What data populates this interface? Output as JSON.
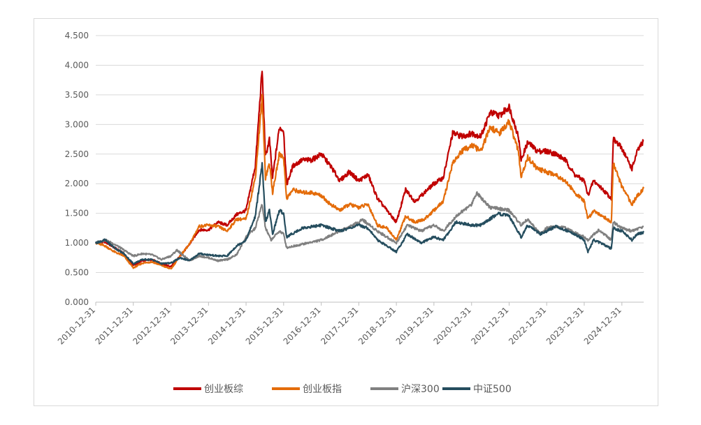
{
  "chart_data": {
    "type": "line",
    "title": "",
    "xlabel": "",
    "ylabel": "",
    "ylim": [
      0,
      4.5
    ],
    "yticks": [
      "0.000",
      "0.500",
      "1.000",
      "1.500",
      "2.000",
      "2.500",
      "3.000",
      "3.500",
      "4.000",
      "4.500"
    ],
    "x_tick_labels": [
      "2010-12-31",
      "2011-12-31",
      "2012-12-31",
      "2013-12-31",
      "2014-12-31",
      "2015-12-31",
      "2016-12-31",
      "2017-12-31",
      "2018-12-31",
      "2019-12-31",
      "2020-12-31",
      "2021-12-31",
      "2022-12-31",
      "2023-12-31",
      "2024-12-31"
    ],
    "xlim": [
      "2010-12-31",
      "2025-07-31"
    ],
    "grid": "horizontal",
    "legend_position": "bottom",
    "series": [
      {
        "name": "创业板综",
        "color": "#C00000",
        "points": [
          [
            "2010-12-31",
            1.0
          ],
          [
            "2011-03-31",
            1.02
          ],
          [
            "2011-06-30",
            0.92
          ],
          [
            "2011-09-30",
            0.82
          ],
          [
            "2011-12-31",
            0.62
          ],
          [
            "2012-03-31",
            0.7
          ],
          [
            "2012-06-30",
            0.72
          ],
          [
            "2012-09-30",
            0.65
          ],
          [
            "2012-12-31",
            0.6
          ],
          [
            "2013-03-31",
            0.78
          ],
          [
            "2013-06-30",
            0.98
          ],
          [
            "2013-09-30",
            1.22
          ],
          [
            "2013-12-31",
            1.22
          ],
          [
            "2014-03-31",
            1.35
          ],
          [
            "2014-06-30",
            1.3
          ],
          [
            "2014-09-30",
            1.48
          ],
          [
            "2014-12-31",
            1.55
          ],
          [
            "2015-03-31",
            2.3
          ],
          [
            "2015-06-05",
            3.92
          ],
          [
            "2015-07-08",
            2.45
          ],
          [
            "2015-08-15",
            2.75
          ],
          [
            "2015-09-15",
            2.1
          ],
          [
            "2015-11-20",
            2.95
          ],
          [
            "2015-12-31",
            2.9
          ],
          [
            "2016-01-29",
            1.98
          ],
          [
            "2016-03-31",
            2.3
          ],
          [
            "2016-06-30",
            2.4
          ],
          [
            "2016-09-30",
            2.4
          ],
          [
            "2016-12-31",
            2.5
          ],
          [
            "2017-03-31",
            2.3
          ],
          [
            "2017-06-30",
            2.05
          ],
          [
            "2017-09-30",
            2.2
          ],
          [
            "2017-12-31",
            2.05
          ],
          [
            "2018-03-31",
            2.15
          ],
          [
            "2018-06-30",
            1.75
          ],
          [
            "2018-09-30",
            1.55
          ],
          [
            "2018-12-31",
            1.35
          ],
          [
            "2019-03-31",
            1.9
          ],
          [
            "2019-06-30",
            1.7
          ],
          [
            "2019-09-30",
            1.85
          ],
          [
            "2019-12-31",
            2.0
          ],
          [
            "2020-03-31",
            2.1
          ],
          [
            "2020-06-30",
            2.85
          ],
          [
            "2020-09-30",
            2.8
          ],
          [
            "2020-12-31",
            2.85
          ],
          [
            "2021-03-31",
            2.8
          ],
          [
            "2021-06-30",
            3.2
          ],
          [
            "2021-09-30",
            3.15
          ],
          [
            "2021-12-31",
            3.3
          ],
          [
            "2022-03-31",
            2.8
          ],
          [
            "2022-04-27",
            2.4
          ],
          [
            "2022-06-30",
            2.7
          ],
          [
            "2022-09-30",
            2.55
          ],
          [
            "2022-12-31",
            2.55
          ],
          [
            "2023-03-31",
            2.5
          ],
          [
            "2023-06-30",
            2.4
          ],
          [
            "2023-09-30",
            2.15
          ],
          [
            "2023-12-31",
            2.05
          ],
          [
            "2024-02-05",
            1.8
          ],
          [
            "2024-03-31",
            2.05
          ],
          [
            "2024-06-30",
            1.9
          ],
          [
            "2024-09-20",
            1.75
          ],
          [
            "2024-10-08",
            2.75
          ],
          [
            "2024-12-31",
            2.6
          ],
          [
            "2025-04-08",
            2.25
          ],
          [
            "2025-05-31",
            2.55
          ],
          [
            "2025-07-31",
            2.72
          ]
        ]
      },
      {
        "name": "创业板指",
        "color": "#E46C0A",
        "points": [
          [
            "2010-12-31",
            1.0
          ],
          [
            "2011-03-31",
            0.95
          ],
          [
            "2011-06-30",
            0.85
          ],
          [
            "2011-09-30",
            0.78
          ],
          [
            "2011-12-31",
            0.58
          ],
          [
            "2012-03-31",
            0.66
          ],
          [
            "2012-06-30",
            0.68
          ],
          [
            "2012-09-30",
            0.62
          ],
          [
            "2012-12-31",
            0.56
          ],
          [
            "2013-03-31",
            0.78
          ],
          [
            "2013-06-30",
            0.98
          ],
          [
            "2013-09-30",
            1.28
          ],
          [
            "2013-12-31",
            1.3
          ],
          [
            "2014-03-31",
            1.28
          ],
          [
            "2014-06-30",
            1.2
          ],
          [
            "2014-09-30",
            1.4
          ],
          [
            "2014-12-31",
            1.4
          ],
          [
            "2015-03-31",
            2.1
          ],
          [
            "2015-06-05",
            3.45
          ],
          [
            "2015-07-08",
            2.1
          ],
          [
            "2015-08-15",
            2.35
          ],
          [
            "2015-09-15",
            1.85
          ],
          [
            "2015-11-20",
            2.5
          ],
          [
            "2015-12-31",
            2.45
          ],
          [
            "2016-01-29",
            1.75
          ],
          [
            "2016-03-31",
            1.9
          ],
          [
            "2016-06-30",
            1.85
          ],
          [
            "2016-09-30",
            1.85
          ],
          [
            "2016-12-31",
            1.8
          ],
          [
            "2017-03-31",
            1.65
          ],
          [
            "2017-06-30",
            1.55
          ],
          [
            "2017-09-30",
            1.65
          ],
          [
            "2017-12-31",
            1.6
          ],
          [
            "2018-03-31",
            1.65
          ],
          [
            "2018-06-30",
            1.3
          ],
          [
            "2018-09-30",
            1.25
          ],
          [
            "2018-12-31",
            1.05
          ],
          [
            "2019-03-31",
            1.45
          ],
          [
            "2019-06-30",
            1.35
          ],
          [
            "2019-09-30",
            1.4
          ],
          [
            "2019-12-31",
            1.55
          ],
          [
            "2020-03-31",
            1.7
          ],
          [
            "2020-06-30",
            2.35
          ],
          [
            "2020-09-30",
            2.55
          ],
          [
            "2020-12-31",
            2.65
          ],
          [
            "2021-03-31",
            2.55
          ],
          [
            "2021-06-30",
            2.95
          ],
          [
            "2021-09-30",
            2.85
          ],
          [
            "2021-12-31",
            3.05
          ],
          [
            "2022-03-31",
            2.55
          ],
          [
            "2022-04-27",
            2.1
          ],
          [
            "2022-06-30",
            2.45
          ],
          [
            "2022-09-30",
            2.25
          ],
          [
            "2022-12-31",
            2.2
          ],
          [
            "2023-03-31",
            2.15
          ],
          [
            "2023-06-30",
            2.05
          ],
          [
            "2023-09-30",
            1.85
          ],
          [
            "2023-12-31",
            1.7
          ],
          [
            "2024-02-05",
            1.4
          ],
          [
            "2024-03-31",
            1.55
          ],
          [
            "2024-06-30",
            1.45
          ],
          [
            "2024-09-20",
            1.35
          ],
          [
            "2024-10-08",
            2.35
          ],
          [
            "2024-12-31",
            1.95
          ],
          [
            "2025-04-08",
            1.65
          ],
          [
            "2025-05-31",
            1.8
          ],
          [
            "2025-07-31",
            1.92
          ]
        ]
      },
      {
        "name": "沪深300",
        "color": "#808080",
        "points": [
          [
            "2010-12-31",
            1.0
          ],
          [
            "2011-03-31",
            1.05
          ],
          [
            "2011-06-30",
            0.98
          ],
          [
            "2011-09-30",
            0.88
          ],
          [
            "2011-12-31",
            0.78
          ],
          [
            "2012-03-31",
            0.82
          ],
          [
            "2012-06-30",
            0.8
          ],
          [
            "2012-09-30",
            0.72
          ],
          [
            "2012-12-31",
            0.78
          ],
          [
            "2013-02-28",
            0.88
          ],
          [
            "2013-06-30",
            0.7
          ],
          [
            "2013-09-30",
            0.78
          ],
          [
            "2013-12-31",
            0.75
          ],
          [
            "2014-03-31",
            0.7
          ],
          [
            "2014-06-30",
            0.72
          ],
          [
            "2014-09-30",
            0.8
          ],
          [
            "2014-12-31",
            1.1
          ],
          [
            "2015-03-31",
            1.25
          ],
          [
            "2015-06-05",
            1.65
          ],
          [
            "2015-07-08",
            1.25
          ],
          [
            "2015-08-31",
            1.05
          ],
          [
            "2015-11-20",
            1.2
          ],
          [
            "2015-12-31",
            1.15
          ],
          [
            "2016-01-29",
            0.92
          ],
          [
            "2016-06-30",
            0.98
          ],
          [
            "2016-12-31",
            1.05
          ],
          [
            "2017-06-30",
            1.2
          ],
          [
            "2017-12-31",
            1.35
          ],
          [
            "2018-01-31",
            1.4
          ],
          [
            "2018-06-30",
            1.2
          ],
          [
            "2018-12-31",
            1.0
          ],
          [
            "2019-04-15",
            1.3
          ],
          [
            "2019-08-31",
            1.2
          ],
          [
            "2019-12-31",
            1.3
          ],
          [
            "2020-03-31",
            1.2
          ],
          [
            "2020-07-31",
            1.45
          ],
          [
            "2020-12-31",
            1.65
          ],
          [
            "2021-02-18",
            1.85
          ],
          [
            "2021-06-30",
            1.6
          ],
          [
            "2021-12-31",
            1.55
          ],
          [
            "2022-04-27",
            1.3
          ],
          [
            "2022-06-30",
            1.4
          ],
          [
            "2022-10-31",
            1.15
          ],
          [
            "2022-12-31",
            1.25
          ],
          [
            "2023-03-31",
            1.28
          ],
          [
            "2023-06-30",
            1.25
          ],
          [
            "2023-12-31",
            1.1
          ],
          [
            "2024-02-05",
            1.05
          ],
          [
            "2024-05-20",
            1.22
          ],
          [
            "2024-09-20",
            1.05
          ],
          [
            "2024-10-08",
            1.35
          ],
          [
            "2024-12-31",
            1.25
          ],
          [
            "2025-04-08",
            1.2
          ],
          [
            "2025-07-31",
            1.28
          ]
        ]
      },
      {
        "name": "中证500",
        "color": "#254D5E",
        "points": [
          [
            "2010-12-31",
            1.0
          ],
          [
            "2011-03-31",
            1.05
          ],
          [
            "2011-06-30",
            0.92
          ],
          [
            "2011-09-30",
            0.82
          ],
          [
            "2011-12-31",
            0.65
          ],
          [
            "2012-03-31",
            0.72
          ],
          [
            "2012-06-30",
            0.72
          ],
          [
            "2012-09-30",
            0.65
          ],
          [
            "2012-12-31",
            0.66
          ],
          [
            "2013-03-31",
            0.75
          ],
          [
            "2013-06-30",
            0.7
          ],
          [
            "2013-09-30",
            0.82
          ],
          [
            "2013-12-31",
            0.8
          ],
          [
            "2014-03-31",
            0.78
          ],
          [
            "2014-06-30",
            0.78
          ],
          [
            "2014-09-30",
            0.95
          ],
          [
            "2014-12-31",
            1.05
          ],
          [
            "2015-03-31",
            1.45
          ],
          [
            "2015-06-05",
            2.33
          ],
          [
            "2015-07-08",
            1.35
          ],
          [
            "2015-08-15",
            1.55
          ],
          [
            "2015-09-15",
            1.15
          ],
          [
            "2015-11-20",
            1.55
          ],
          [
            "2015-12-31",
            1.5
          ],
          [
            "2016-01-29",
            1.1
          ],
          [
            "2016-06-30",
            1.25
          ],
          [
            "2016-12-31",
            1.3
          ],
          [
            "2017-06-30",
            1.2
          ],
          [
            "2017-12-31",
            1.3
          ],
          [
            "2018-03-31",
            1.25
          ],
          [
            "2018-06-30",
            1.05
          ],
          [
            "2018-12-31",
            0.85
          ],
          [
            "2019-04-15",
            1.15
          ],
          [
            "2019-08-31",
            1.0
          ],
          [
            "2019-12-31",
            1.1
          ],
          [
            "2020-03-31",
            1.05
          ],
          [
            "2020-07-31",
            1.35
          ],
          [
            "2020-12-31",
            1.3
          ],
          [
            "2021-03-31",
            1.3
          ],
          [
            "2021-09-15",
            1.5
          ],
          [
            "2021-12-31",
            1.45
          ],
          [
            "2022-04-27",
            1.1
          ],
          [
            "2022-06-30",
            1.3
          ],
          [
            "2022-10-31",
            1.15
          ],
          [
            "2022-12-31",
            1.2
          ],
          [
            "2023-03-31",
            1.28
          ],
          [
            "2023-06-30",
            1.22
          ],
          [
            "2023-09-30",
            1.15
          ],
          [
            "2023-12-31",
            1.05
          ],
          [
            "2024-02-05",
            0.85
          ],
          [
            "2024-03-31",
            1.05
          ],
          [
            "2024-06-30",
            0.98
          ],
          [
            "2024-09-20",
            0.9
          ],
          [
            "2024-10-08",
            1.25
          ],
          [
            "2024-12-31",
            1.2
          ],
          [
            "2025-04-08",
            1.05
          ],
          [
            "2025-05-31",
            1.15
          ],
          [
            "2025-07-31",
            1.18
          ]
        ]
      }
    ]
  }
}
